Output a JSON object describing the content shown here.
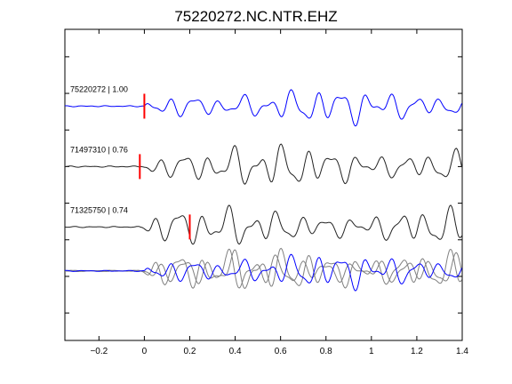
{
  "chart_data": {
    "type": "line",
    "title": "75220272.NC.NTR.EHZ",
    "xlabel": "",
    "ylabel": "",
    "xlim": [
      -0.35,
      1.4
    ],
    "x_ticks": [
      -0.2,
      0,
      0.2,
      0.4,
      0.6,
      0.8,
      1,
      1.2,
      1.4
    ],
    "x_tick_labels": [
      "−0.2",
      "0",
      "0.2",
      "0.4",
      "0.6",
      "0.8",
      "1",
      "1.2",
      "1.4"
    ],
    "y_ticks": [
      0,
      1,
      2,
      3,
      4,
      5,
      6,
      7
    ],
    "grid": false,
    "colors": {
      "reference": "#0000ff",
      "match": "#222222",
      "overlay_match": "#808080",
      "pick": "#ff0000"
    },
    "series": [
      {
        "name": "75220272 | 1.00",
        "onset": 0.0,
        "pick": 0.0,
        "amplitude": 0.35,
        "seed": 1.3
      },
      {
        "name": "71497310 | 0.76",
        "onset": -0.02,
        "pick": -0.02,
        "amplitude": 0.42,
        "seed": 2.7
      },
      {
        "name": "71325750 | 0.74",
        "onset": -0.02,
        "pick": 0.2,
        "amplitude": 0.38,
        "seed": 4.1
      }
    ]
  }
}
